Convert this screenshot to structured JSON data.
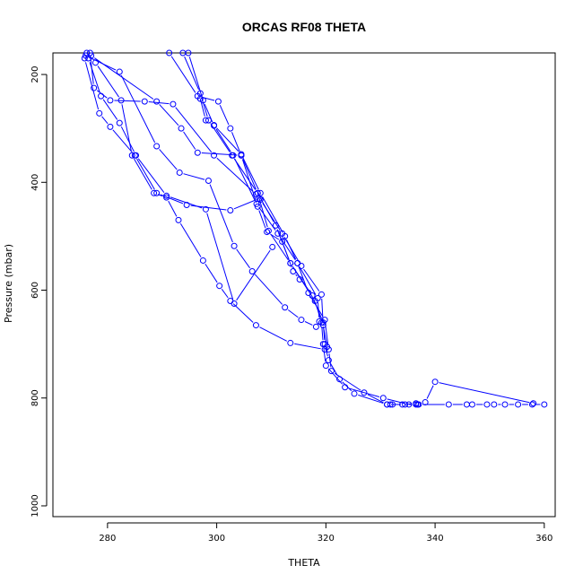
{
  "chart_data": {
    "type": "line",
    "title": "ORCAS RF08 THETA",
    "xlabel": "THETA",
    "ylabel": "Pressure (mbar)",
    "xlim": [
      270,
      362
    ],
    "ylim": [
      1020,
      160
    ],
    "y_reversed": true,
    "grid": false,
    "legend": "none",
    "marker": "open-circle",
    "series_color": "#0000ff",
    "x_ticks": [
      280,
      300,
      320,
      340,
      360
    ],
    "x_tick_labels": [
      "280",
      "300",
      "320",
      "340",
      "360"
    ],
    "y_ticks": [
      200,
      400,
      600,
      800,
      1000
    ],
    "y_tick_labels": [
      "200",
      "400",
      "600",
      "800",
      "1000"
    ],
    "series": [
      {
        "points": [
          [
            291.3,
            160
          ],
          [
            296.5,
            240
          ],
          [
            300.3,
            250
          ],
          [
            302.5,
            300
          ],
          [
            304.5,
            350
          ],
          [
            307.5,
            420
          ],
          [
            309.5,
            490
          ],
          [
            313.5,
            550
          ],
          [
            317.5,
            610
          ],
          [
            319.5,
            660
          ],
          [
            319.8,
            700
          ],
          [
            320.5,
            730
          ],
          [
            322.5,
            765
          ],
          [
            325.2,
            792
          ],
          [
            331.2,
            812
          ],
          [
            331.8,
            812
          ],
          [
            332.2,
            812
          ],
          [
            334.5,
            812
          ],
          [
            336.5,
            812
          ],
          [
            337.0,
            812
          ],
          [
            342.5,
            812
          ],
          [
            345.8,
            812
          ],
          [
            346.8,
            812
          ],
          [
            349.5,
            812
          ],
          [
            350.8,
            812
          ],
          [
            352.8,
            812
          ],
          [
            355.2,
            812
          ],
          [
            357.8,
            812
          ],
          [
            360.0,
            812
          ]
        ]
      },
      {
        "points": [
          [
            293.8,
            160
          ],
          [
            297.0,
            235
          ],
          [
            298.5,
            285
          ],
          [
            302.8,
            350
          ],
          [
            307.5,
            420
          ],
          [
            310.8,
            480
          ],
          [
            313.5,
            550
          ],
          [
            318.0,
            620
          ],
          [
            319.2,
            660
          ],
          [
            319.5,
            700
          ],
          [
            320.0,
            740
          ],
          [
            323.5,
            780
          ],
          [
            330.5,
            800
          ],
          [
            335.2,
            812
          ],
          [
            336.8,
            812
          ],
          [
            338.2,
            808
          ],
          [
            340.0,
            770
          ],
          [
            358.0,
            810
          ]
        ]
      },
      {
        "points": [
          [
            294.8,
            160
          ],
          [
            297.5,
            248
          ],
          [
            299.5,
            295
          ],
          [
            303.0,
            350
          ],
          [
            307.3,
            440
          ],
          [
            311.2,
            495
          ],
          [
            314.8,
            550
          ],
          [
            316.8,
            605
          ],
          [
            319.8,
            655
          ],
          [
            320.5,
            710
          ],
          [
            321.0,
            750
          ],
          [
            327.0,
            790
          ],
          [
            331.2,
            812
          ],
          [
            334.0,
            812
          ],
          [
            336.5,
            810
          ]
        ]
      },
      {
        "points": [
          [
            276.8,
            160
          ],
          [
            277.5,
            225
          ],
          [
            280.5,
            248
          ],
          [
            286.8,
            250
          ],
          [
            292.0,
            255
          ],
          [
            299.5,
            350
          ],
          [
            307.2,
            422
          ],
          [
            308.0,
            432
          ],
          [
            312.0,
            495
          ],
          [
            315.5,
            555
          ],
          [
            319.2,
            608
          ],
          [
            319.5,
            665
          ],
          [
            320.2,
            705
          ]
        ]
      },
      {
        "points": [
          [
            276.2,
            160
          ],
          [
            277.8,
            178
          ],
          [
            282.5,
            248
          ],
          [
            284.5,
            350
          ],
          [
            288.5,
            420
          ],
          [
            290.8,
            428
          ],
          [
            293.0,
            470
          ],
          [
            297.5,
            545
          ],
          [
            300.5,
            592
          ],
          [
            302.5,
            620
          ],
          [
            307.2,
            665
          ],
          [
            313.5,
            698
          ],
          [
            319.8,
            710
          ]
        ]
      },
      {
        "points": [
          [
            275.8,
            170
          ],
          [
            278.5,
            272
          ],
          [
            280.5,
            297
          ],
          [
            285.0,
            350
          ],
          [
            289.0,
            420
          ],
          [
            294.5,
            442
          ],
          [
            302.5,
            452
          ],
          [
            307.8,
            430
          ]
        ]
      },
      {
        "points": [
          [
            276.5,
            170
          ],
          [
            278.8,
            240
          ],
          [
            282.2,
            290
          ],
          [
            285.2,
            350
          ],
          [
            290.8,
            425
          ],
          [
            298.0,
            450
          ],
          [
            303.2,
            625
          ],
          [
            310.2,
            520
          ]
        ]
      },
      {
        "points": [
          [
            276.0,
            165
          ],
          [
            282.2,
            195
          ],
          [
            289.0,
            333
          ],
          [
            293.2,
            382
          ],
          [
            298.5,
            397
          ],
          [
            303.2,
            518
          ],
          [
            306.5,
            565
          ],
          [
            312.5,
            632
          ],
          [
            315.5,
            655
          ],
          [
            318.2,
            668
          ]
        ]
      },
      {
        "points": [
          [
            277.0,
            165
          ],
          [
            289.0,
            250
          ],
          [
            293.5,
            300
          ],
          [
            296.5,
            345
          ],
          [
            304.5,
            350
          ],
          [
            307.5,
            445
          ],
          [
            309.2,
            492
          ],
          [
            312.0,
            510
          ],
          [
            314.0,
            565
          ],
          [
            315.2,
            580
          ]
        ]
      },
      {
        "points": [
          [
            297.0,
            245
          ],
          [
            298.0,
            285
          ],
          [
            299.5,
            294
          ],
          [
            304.5,
            348
          ],
          [
            308.0,
            420
          ],
          [
            312.5,
            500
          ],
          [
            314.8,
            550
          ],
          [
            318.5,
            615
          ],
          [
            318.8,
            658
          ]
        ]
      }
    ]
  }
}
